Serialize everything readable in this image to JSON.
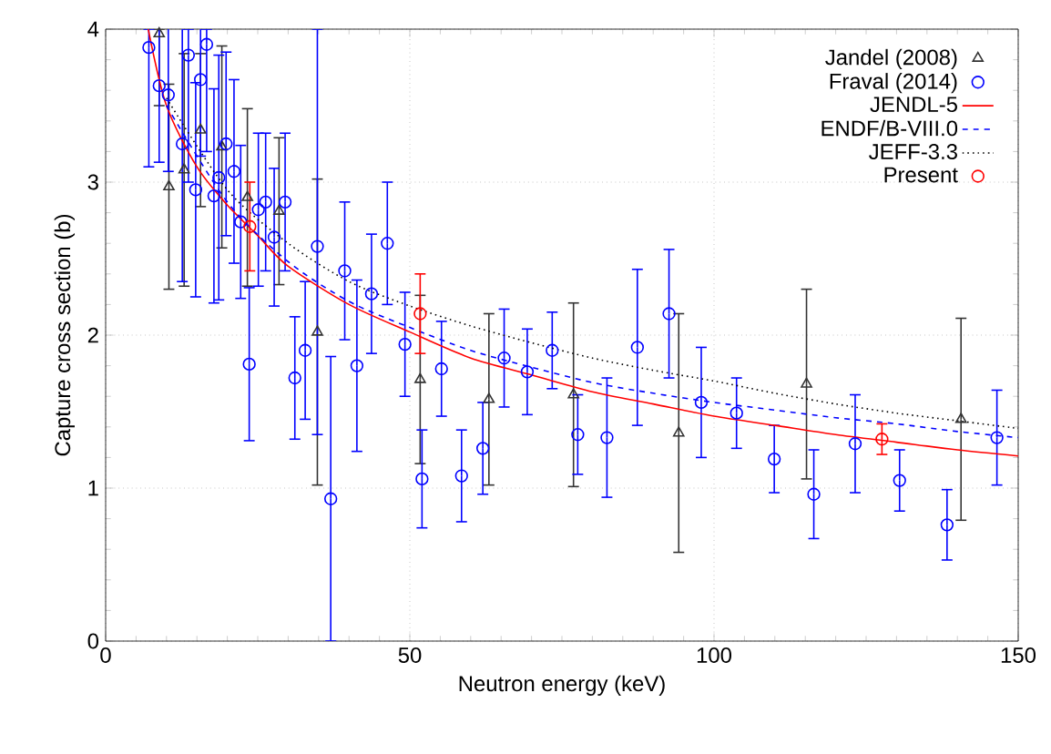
{
  "chart_data": {
    "type": "scatter",
    "xlabel": "Neutron energy (keV)",
    "ylabel": "Capture cross section (b)",
    "xlim": [
      0,
      150
    ],
    "ylim": [
      0,
      4
    ],
    "xticks": [
      0,
      50,
      100,
      150
    ],
    "yticks": [
      0,
      1,
      2,
      3,
      4
    ],
    "grid": true,
    "legend": "top right",
    "series": [
      {
        "name": "Jandel (2008)",
        "marker": "triangle",
        "color": "#333333",
        "x": [
          8.8,
          10.4,
          12.9,
          15.6,
          19.1,
          23.3,
          28.5,
          34.8,
          51.7,
          63.0,
          76.9,
          94.2,
          115.2,
          140.6
        ],
        "values": [
          3.97,
          2.97,
          3.08,
          3.34,
          3.23,
          2.9,
          2.81,
          2.02,
          1.71,
          1.58,
          1.61,
          1.36,
          1.68,
          1.45
        ],
        "errors": [
          [
            3.5,
            4
          ],
          0.67,
          0.76,
          0.5,
          0.66,
          0.58,
          0.48,
          1.0,
          0.55,
          0.56,
          0.6,
          0.78,
          0.62,
          0.66
        ]
      },
      {
        "name": "Fraval (2014)",
        "marker": "circle",
        "color": "#0000ff",
        "x": [
          7.1,
          8.8,
          10.3,
          12.6,
          13.6,
          14.8,
          15.6,
          16.6,
          17.8,
          18.6,
          19.8,
          21.1,
          22.2,
          23.6,
          25.1,
          26.3,
          27.7,
          29.5,
          31.1,
          32.8,
          34.8,
          37.0,
          39.3,
          41.3,
          43.7,
          46.3,
          49.2,
          52.0,
          55.2,
          58.5,
          62.0,
          65.5,
          69.3,
          73.4,
          77.6,
          82.4,
          87.4,
          92.6,
          97.9,
          103.7,
          109.9,
          116.4,
          123.2,
          130.5,
          138.3,
          146.5
        ],
        "values": [
          3.88,
          3.63,
          3.57,
          3.25,
          3.83,
          2.95,
          3.67,
          3.9,
          2.91,
          3.03,
          3.25,
          3.07,
          2.74,
          1.81,
          2.82,
          2.87,
          2.64,
          2.87,
          1.72,
          1.9,
          2.58,
          0.93,
          2.42,
          1.8,
          2.27,
          2.6,
          1.94,
          1.06,
          1.78,
          1.08,
          1.26,
          1.85,
          1.76,
          1.9,
          1.35,
          1.33,
          1.92,
          2.14,
          1.56,
          1.49,
          1.19,
          0.96,
          1.29,
          1.05,
          0.76,
          1.33
        ],
        "errors": [
          [
            3.1,
            4
          ],
          0.5,
          0.5,
          0.9,
          [
            3.0,
            4
          ],
          0.7,
          0.5,
          [
            3.2,
            4
          ],
          0.7,
          0.8,
          0.6,
          0.6,
          0.5,
          0.5,
          0.5,
          0.45,
          0.45,
          0.45,
          0.4,
          0.45,
          [
            1.35,
            4
          ],
          0.93,
          0.45,
          0.56,
          0.39,
          0.4,
          0.34,
          0.32,
          0.31,
          0.3,
          0.3,
          0.32,
          0.28,
          0.25,
          0.26,
          0.39,
          0.51,
          0.42,
          0.36,
          0.23,
          0.22,
          0.29,
          0.32,
          0.2,
          0.23,
          0.31
        ]
      },
      {
        "name": "JENDL-5",
        "type": "line",
        "line_style": "solid",
        "color": "#ff0000",
        "x": [
          7,
          10,
          15,
          20,
          25,
          30,
          40,
          50,
          60,
          70,
          80,
          90,
          100,
          110,
          120,
          130,
          140,
          150
        ],
        "values": [
          4.0,
          3.5,
          3.1,
          2.85,
          2.65,
          2.45,
          2.2,
          2.02,
          1.85,
          1.74,
          1.63,
          1.55,
          1.47,
          1.41,
          1.35,
          1.3,
          1.25,
          1.21
        ]
      },
      {
        "name": "ENDF/B-VIII.0",
        "type": "line",
        "line_style": "dashed",
        "color": "#0000ff",
        "x": [
          10,
          20,
          30,
          40,
          50,
          60,
          70,
          80,
          90,
          100,
          110,
          120,
          130,
          140,
          150
        ],
        "values": [
          3.5,
          2.87,
          2.48,
          2.22,
          2.05,
          1.9,
          1.79,
          1.69,
          1.62,
          1.56,
          1.51,
          1.46,
          1.42,
          1.37,
          1.33
        ]
      },
      {
        "name": "JEFF-3.3",
        "type": "line",
        "line_style": "dotted",
        "color": "#000000",
        "x": [
          10,
          20,
          30,
          40,
          50,
          60,
          70,
          80,
          90,
          100,
          110,
          120,
          130,
          140,
          150
        ],
        "values": [
          3.55,
          2.95,
          2.6,
          2.35,
          2.19,
          2.06,
          1.95,
          1.85,
          1.77,
          1.7,
          1.62,
          1.55,
          1.49,
          1.44,
          1.39
        ]
      },
      {
        "name": "Present",
        "marker": "circle",
        "color": "#ff0000",
        "x": [
          23.7,
          51.7,
          127.6
        ],
        "values": [
          2.71,
          2.14,
          1.32
        ],
        "errors": [
          0.29,
          0.26,
          0.1
        ]
      }
    ]
  }
}
